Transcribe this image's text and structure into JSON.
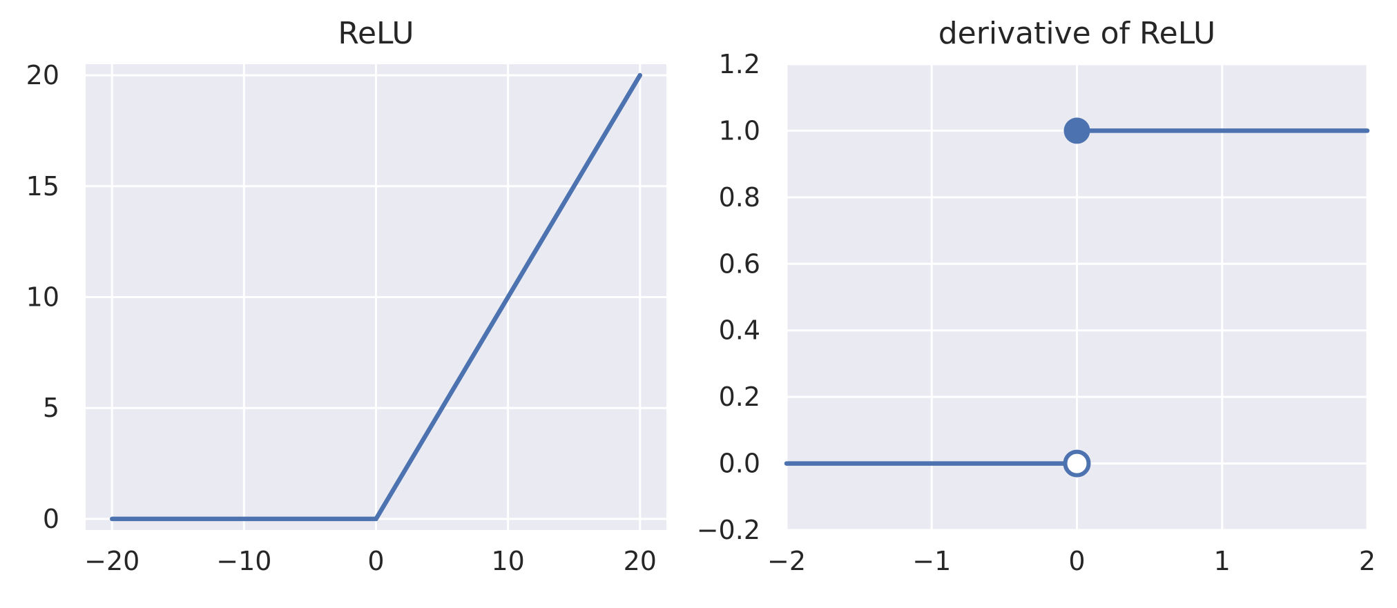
{
  "chart_data": [
    {
      "type": "line",
      "title": "ReLU",
      "xlabel": "",
      "ylabel": "",
      "xlim": [
        -22,
        22
      ],
      "ylim": [
        -0.5,
        20.5
      ],
      "xticks": [
        -20,
        -10,
        0,
        10,
        20
      ],
      "xtick_labels": [
        "−20",
        "−10",
        "0",
        "10",
        "20"
      ],
      "yticks": [
        0,
        5,
        10,
        15,
        20
      ],
      "ytick_labels": [
        "0",
        "5",
        "10",
        "15",
        "20"
      ],
      "grid": true,
      "series": [
        {
          "color": "#4c72b0",
          "x": [
            -20,
            0,
            20
          ],
          "y": [
            0,
            0,
            20
          ]
        }
      ]
    },
    {
      "type": "line",
      "title": "derivative of ReLU",
      "xlabel": "",
      "ylabel": "",
      "xlim": [
        -2,
        2
      ],
      "ylim": [
        -0.2,
        1.2
      ],
      "xticks": [
        -2,
        -1,
        0,
        1,
        2
      ],
      "xtick_labels": [
        "−2",
        "−1",
        "0",
        "1",
        "2"
      ],
      "yticks": [
        -0.2,
        0.0,
        0.2,
        0.4,
        0.6,
        0.8,
        1.0,
        1.2
      ],
      "ytick_labels": [
        "−0.2",
        "0.0",
        "0.2",
        "0.4",
        "0.6",
        "0.8",
        "1.0",
        "1.2"
      ],
      "grid": true,
      "series": [
        {
          "color": "#4c72b0",
          "x": [
            -2,
            0
          ],
          "y": [
            0,
            0
          ]
        },
        {
          "color": "#4c72b0",
          "x": [
            0,
            2
          ],
          "y": [
            1,
            1
          ]
        }
      ],
      "markers": [
        {
          "x": 0,
          "y": 1,
          "style": "filled",
          "color": "#4c72b0"
        },
        {
          "x": 0,
          "y": 0,
          "style": "open",
          "color": "#4c72b0"
        }
      ]
    }
  ]
}
